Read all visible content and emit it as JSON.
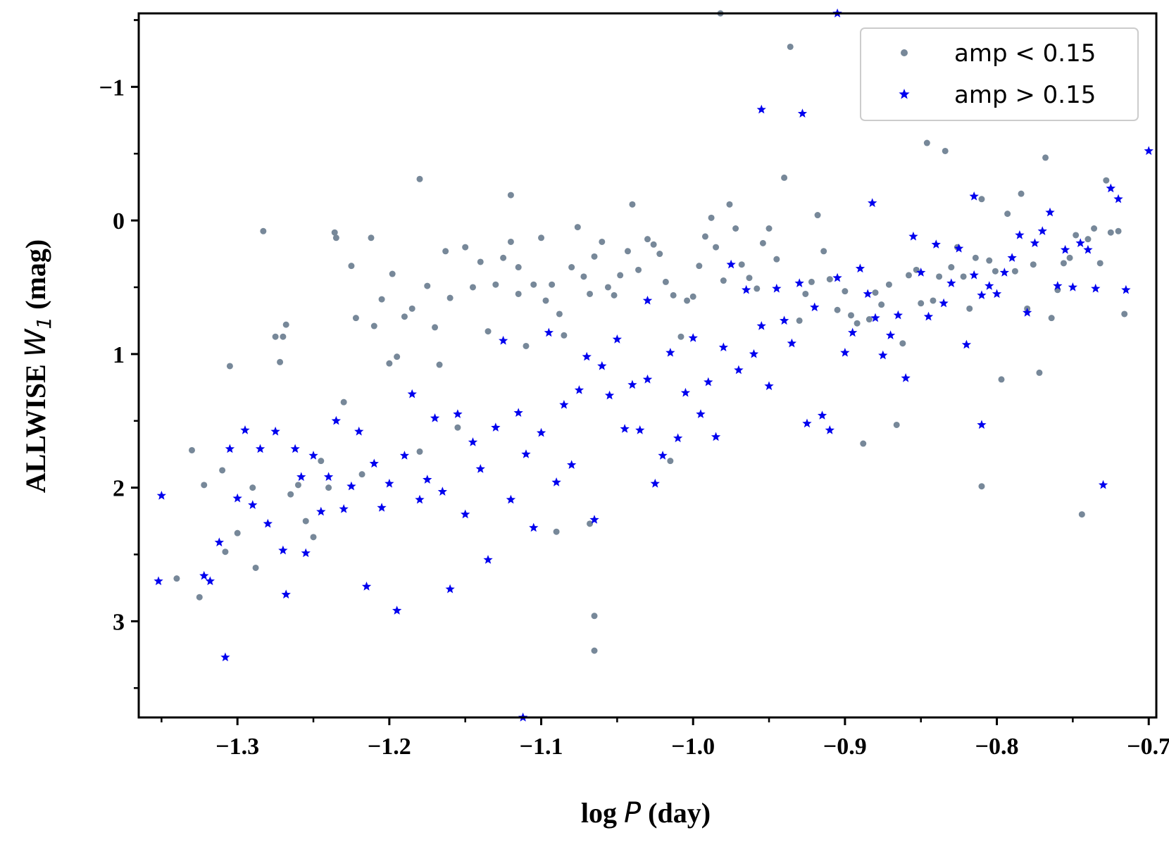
{
  "chart_data": {
    "type": "scatter",
    "xlabel_prefix": "log ",
    "xlabel_var": "P",
    "xlabel_suffix": " (day)",
    "ylabel_prefix": "ALLWISE ",
    "ylabel_var": "W",
    "ylabel_sub": "1",
    "ylabel_suffix": " (mag)",
    "xlim": [
      -1.365,
      -0.695
    ],
    "ylim": [
      3.72,
      -1.55
    ],
    "y_inverted": true,
    "xticks": [
      -1.3,
      -1.2,
      -1.1,
      -1.0,
      -0.9,
      -0.8,
      -0.7
    ],
    "xtick_labels": [
      "−1.3",
      "−1.2",
      "−1.1",
      "−1.0",
      "−0.9",
      "−0.8",
      "−0.7"
    ],
    "yticks": [
      -1,
      0,
      1,
      2,
      3
    ],
    "ytick_labels": [
      "−1",
      "0",
      "1",
      "2",
      "3"
    ],
    "legend_position": "top-right",
    "grid": false,
    "series": [
      {
        "name": "amp < 0.15",
        "marker": "circle",
        "color": "#778899",
        "points": [
          [
            -1.34,
            2.68
          ],
          [
            -1.33,
            1.72
          ],
          [
            -1.325,
            2.82
          ],
          [
            -1.322,
            1.98
          ],
          [
            -1.31,
            1.87
          ],
          [
            -1.308,
            2.48
          ],
          [
            -1.305,
            1.09
          ],
          [
            -1.3,
            2.34
          ],
          [
            -1.29,
            2.0
          ],
          [
            -1.288,
            2.6
          ],
          [
            -1.283,
            0.08
          ],
          [
            -1.275,
            0.87
          ],
          [
            -1.272,
            1.06
          ],
          [
            -1.268,
            0.78
          ],
          [
            -1.265,
            2.05
          ],
          [
            -1.26,
            1.98
          ],
          [
            -1.255,
            2.25
          ],
          [
            -1.25,
            2.37
          ],
          [
            -1.245,
            1.8
          ],
          [
            -1.24,
            2.0
          ],
          [
            -1.236,
            0.09
          ],
          [
            -1.23,
            1.36
          ],
          [
            -1.225,
            0.34
          ],
          [
            -1.222,
            0.73
          ],
          [
            -1.218,
            1.9
          ],
          [
            -1.212,
            0.13
          ],
          [
            -1.21,
            0.79
          ],
          [
            -1.205,
            0.59
          ],
          [
            -1.2,
            1.07
          ],
          [
            -1.198,
            0.4
          ],
          [
            -1.195,
            1.02
          ],
          [
            -1.19,
            0.72
          ],
          [
            -1.185,
            0.66
          ],
          [
            -1.18,
            1.73
          ],
          [
            -1.175,
            0.49
          ],
          [
            -1.17,
            0.8
          ],
          [
            -1.167,
            1.08
          ],
          [
            -1.163,
            0.23
          ],
          [
            -1.16,
            0.58
          ],
          [
            -1.155,
            1.55
          ],
          [
            -1.15,
            0.2
          ],
          [
            -1.145,
            0.5
          ],
          [
            -1.14,
            0.31
          ],
          [
            -1.135,
            0.83
          ],
          [
            -1.13,
            0.48
          ],
          [
            -1.125,
            0.28
          ],
          [
            -1.12,
            0.16
          ],
          [
            -1.115,
            0.55
          ],
          [
            -1.11,
            0.94
          ],
          [
            -1.105,
            0.48
          ],
          [
            -1.1,
            0.13
          ],
          [
            -1.097,
            0.6
          ],
          [
            -1.093,
            0.48
          ],
          [
            -1.088,
            0.7
          ],
          [
            -1.085,
            0.86
          ],
          [
            -1.08,
            0.35
          ],
          [
            -1.076,
            0.05
          ],
          [
            -1.072,
            0.42
          ],
          [
            -1.068,
            0.55
          ],
          [
            -1.065,
            0.27
          ],
          [
            -1.06,
            0.16
          ],
          [
            -1.056,
            0.5
          ],
          [
            -1.052,
            0.56
          ],
          [
            -1.048,
            0.41
          ],
          [
            -1.043,
            0.23
          ],
          [
            -1.04,
            -0.12
          ],
          [
            -1.036,
            0.37
          ],
          [
            -1.03,
            0.14
          ],
          [
            -1.026,
            0.18
          ],
          [
            -1.022,
            0.25
          ],
          [
            -1.018,
            0.46
          ],
          [
            -1.013,
            0.56
          ],
          [
            -1.008,
            0.87
          ],
          [
            -1.004,
            0.6
          ],
          [
            -1.0,
            0.57
          ],
          [
            -0.996,
            0.34
          ],
          [
            -0.992,
            0.12
          ],
          [
            -0.988,
            -0.02
          ],
          [
            -0.985,
            0.2
          ],
          [
            -0.98,
            0.45
          ],
          [
            -0.976,
            -0.12
          ],
          [
            -0.972,
            0.06
          ],
          [
            -0.968,
            0.33
          ],
          [
            -0.963,
            0.43
          ],
          [
            -0.958,
            0.51
          ],
          [
            -0.954,
            0.17
          ],
          [
            -0.95,
            0.06
          ],
          [
            -0.945,
            0.29
          ],
          [
            -0.94,
            -0.32
          ],
          [
            -0.936,
            -1.3
          ],
          [
            -0.93,
            0.75
          ],
          [
            -0.926,
            0.55
          ],
          [
            -0.922,
            0.46
          ],
          [
            -0.918,
            -0.04
          ],
          [
            -0.914,
            0.23
          ],
          [
            -0.91,
            0.44
          ],
          [
            -0.905,
            0.67
          ],
          [
            -0.9,
            0.53
          ],
          [
            -0.896,
            0.71
          ],
          [
            -0.892,
            0.77
          ],
          [
            -0.888,
            1.67
          ],
          [
            -0.884,
            0.74
          ],
          [
            -0.88,
            0.54
          ],
          [
            -0.876,
            0.63
          ],
          [
            -0.871,
            0.48
          ],
          [
            -0.866,
            1.53
          ],
          [
            -0.862,
            0.92
          ],
          [
            -0.858,
            0.41
          ],
          [
            -0.853,
            0.37
          ],
          [
            -0.85,
            0.62
          ],
          [
            -0.846,
            -0.58
          ],
          [
            -0.842,
            0.6
          ],
          [
            -0.838,
            0.42
          ],
          [
            -0.834,
            -0.52
          ],
          [
            -0.83,
            0.35
          ],
          [
            -0.826,
            0.2
          ],
          [
            -0.822,
            0.42
          ],
          [
            -0.818,
            0.66
          ],
          [
            -0.814,
            0.28
          ],
          [
            -0.81,
            -0.16
          ],
          [
            -0.805,
            0.3
          ],
          [
            -0.801,
            0.38
          ],
          [
            -0.797,
            1.19
          ],
          [
            -0.793,
            -0.05
          ],
          [
            -0.788,
            0.38
          ],
          [
            -0.784,
            -0.2
          ],
          [
            -0.78,
            0.66
          ],
          [
            -0.776,
            0.33
          ],
          [
            -0.772,
            1.14
          ],
          [
            -0.768,
            -0.47
          ],
          [
            -0.764,
            0.73
          ],
          [
            -0.76,
            0.52
          ],
          [
            -0.756,
            0.32
          ],
          [
            -0.752,
            0.28
          ],
          [
            -0.748,
            0.11
          ],
          [
            -0.744,
            2.2
          ],
          [
            -0.74,
            0.14
          ],
          [
            -0.736,
            0.06
          ],
          [
            -0.732,
            0.32
          ],
          [
            -0.728,
            -0.3
          ],
          [
            -0.725,
            0.09
          ],
          [
            -0.72,
            0.08
          ],
          [
            -0.716,
            0.7
          ],
          [
            -0.81,
            1.99
          ],
          [
            -1.065,
            2.96
          ],
          [
            -1.065,
            3.22
          ],
          [
            -1.068,
            2.27
          ],
          [
            -1.09,
            2.33
          ],
          [
            -1.015,
            1.8
          ],
          [
            -0.982,
            -1.55
          ],
          [
            -1.27,
            0.87
          ],
          [
            -1.235,
            0.13
          ],
          [
            -1.18,
            -0.31
          ],
          [
            -1.12,
            -0.19
          ],
          [
            -1.115,
            0.35
          ]
        ]
      },
      {
        "name": "amp > 0.15",
        "marker": "star",
        "color": "#0000ee",
        "points": [
          [
            -1.35,
            2.06
          ],
          [
            -1.352,
            2.7
          ],
          [
            -1.322,
            2.66
          ],
          [
            -1.318,
            2.7
          ],
          [
            -1.312,
            2.41
          ],
          [
            -1.308,
            3.27
          ],
          [
            -1.305,
            1.71
          ],
          [
            -1.3,
            2.08
          ],
          [
            -1.295,
            1.57
          ],
          [
            -1.29,
            2.13
          ],
          [
            -1.285,
            1.71
          ],
          [
            -1.28,
            2.27
          ],
          [
            -1.275,
            1.58
          ],
          [
            -1.27,
            2.47
          ],
          [
            -1.268,
            2.8
          ],
          [
            -1.262,
            1.71
          ],
          [
            -1.258,
            1.92
          ],
          [
            -1.255,
            2.49
          ],
          [
            -1.25,
            1.76
          ],
          [
            -1.245,
            2.18
          ],
          [
            -1.24,
            1.92
          ],
          [
            -1.235,
            1.5
          ],
          [
            -1.23,
            2.16
          ],
          [
            -1.225,
            1.99
          ],
          [
            -1.22,
            1.58
          ],
          [
            -1.215,
            2.74
          ],
          [
            -1.21,
            1.82
          ],
          [
            -1.205,
            2.15
          ],
          [
            -1.2,
            1.97
          ],
          [
            -1.195,
            2.92
          ],
          [
            -1.19,
            1.76
          ],
          [
            -1.185,
            1.3
          ],
          [
            -1.18,
            2.09
          ],
          [
            -1.175,
            1.94
          ],
          [
            -1.17,
            1.48
          ],
          [
            -1.165,
            2.03
          ],
          [
            -1.16,
            2.76
          ],
          [
            -1.155,
            1.45
          ],
          [
            -1.15,
            2.2
          ],
          [
            -1.145,
            1.66
          ],
          [
            -1.14,
            1.86
          ],
          [
            -1.135,
            2.54
          ],
          [
            -1.13,
            1.55
          ],
          [
            -1.125,
            0.9
          ],
          [
            -1.12,
            2.09
          ],
          [
            -1.115,
            1.44
          ],
          [
            -1.11,
            1.75
          ],
          [
            -1.105,
            2.3
          ],
          [
            -1.1,
            1.59
          ],
          [
            -1.095,
            0.84
          ],
          [
            -1.09,
            1.96
          ],
          [
            -1.085,
            1.38
          ],
          [
            -1.08,
            1.83
          ],
          [
            -1.075,
            1.27
          ],
          [
            -1.07,
            1.02
          ],
          [
            -1.065,
            2.24
          ],
          [
            -1.06,
            1.09
          ],
          [
            -1.055,
            1.31
          ],
          [
            -1.05,
            0.89
          ],
          [
            -1.045,
            1.56
          ],
          [
            -1.04,
            1.23
          ],
          [
            -1.035,
            1.57
          ],
          [
            -1.03,
            1.19
          ],
          [
            -1.025,
            1.97
          ],
          [
            -1.02,
            1.76
          ],
          [
            -1.015,
            0.99
          ],
          [
            -1.01,
            1.63
          ],
          [
            -1.005,
            1.29
          ],
          [
            -1.0,
            0.88
          ],
          [
            -0.995,
            1.45
          ],
          [
            -0.99,
            1.21
          ],
          [
            -0.985,
            1.62
          ],
          [
            -0.98,
            0.95
          ],
          [
            -0.975,
            0.33
          ],
          [
            -0.97,
            1.12
          ],
          [
            -0.965,
            0.52
          ],
          [
            -0.96,
            1.0
          ],
          [
            -0.955,
            0.79
          ],
          [
            -0.95,
            1.24
          ],
          [
            -0.945,
            0.51
          ],
          [
            -0.94,
            0.75
          ],
          [
            -0.935,
            0.92
          ],
          [
            -0.93,
            0.47
          ],
          [
            -0.925,
            1.52
          ],
          [
            -0.92,
            0.65
          ],
          [
            -0.915,
            1.46
          ],
          [
            -0.91,
            1.57
          ],
          [
            -0.905,
            0.43
          ],
          [
            -0.9,
            0.99
          ],
          [
            -0.895,
            0.84
          ],
          [
            -0.89,
            0.36
          ],
          [
            -0.885,
            0.55
          ],
          [
            -0.88,
            0.73
          ],
          [
            -0.875,
            1.01
          ],
          [
            -0.87,
            0.86
          ],
          [
            -0.865,
            0.71
          ],
          [
            -0.86,
            1.18
          ],
          [
            -0.855,
            0.12
          ],
          [
            -0.85,
            0.39
          ],
          [
            -0.845,
            0.72
          ],
          [
            -0.84,
            0.18
          ],
          [
            -0.835,
            0.62
          ],
          [
            -0.83,
            0.47
          ],
          [
            -0.825,
            0.21
          ],
          [
            -0.82,
            0.93
          ],
          [
            -0.815,
            0.41
          ],
          [
            -0.81,
            0.56
          ],
          [
            -0.805,
            0.49
          ],
          [
            -0.8,
            0.55
          ],
          [
            -0.795,
            0.39
          ],
          [
            -0.79,
            0.28
          ],
          [
            -0.785,
            0.11
          ],
          [
            -0.78,
            0.69
          ],
          [
            -0.775,
            0.17
          ],
          [
            -0.77,
            0.08
          ],
          [
            -0.765,
            -0.06
          ],
          [
            -0.76,
            0.49
          ],
          [
            -0.755,
            0.22
          ],
          [
            -0.75,
            0.5
          ],
          [
            -0.745,
            0.17
          ],
          [
            -0.74,
            0.22
          ],
          [
            -0.735,
            0.51
          ],
          [
            -0.73,
            1.98
          ],
          [
            -0.725,
            -0.24
          ],
          [
            -0.72,
            -0.16
          ],
          [
            -0.715,
            0.52
          ],
          [
            -0.7,
            -0.52
          ],
          [
            -0.928,
            -0.8
          ],
          [
            -0.955,
            -0.83
          ],
          [
            -0.905,
            -1.55
          ],
          [
            -0.815,
            -0.18
          ],
          [
            -0.882,
            -0.13
          ],
          [
            -1.112,
            3.72
          ],
          [
            -0.81,
            1.53
          ],
          [
            -1.03,
            0.6
          ]
        ]
      }
    ]
  }
}
